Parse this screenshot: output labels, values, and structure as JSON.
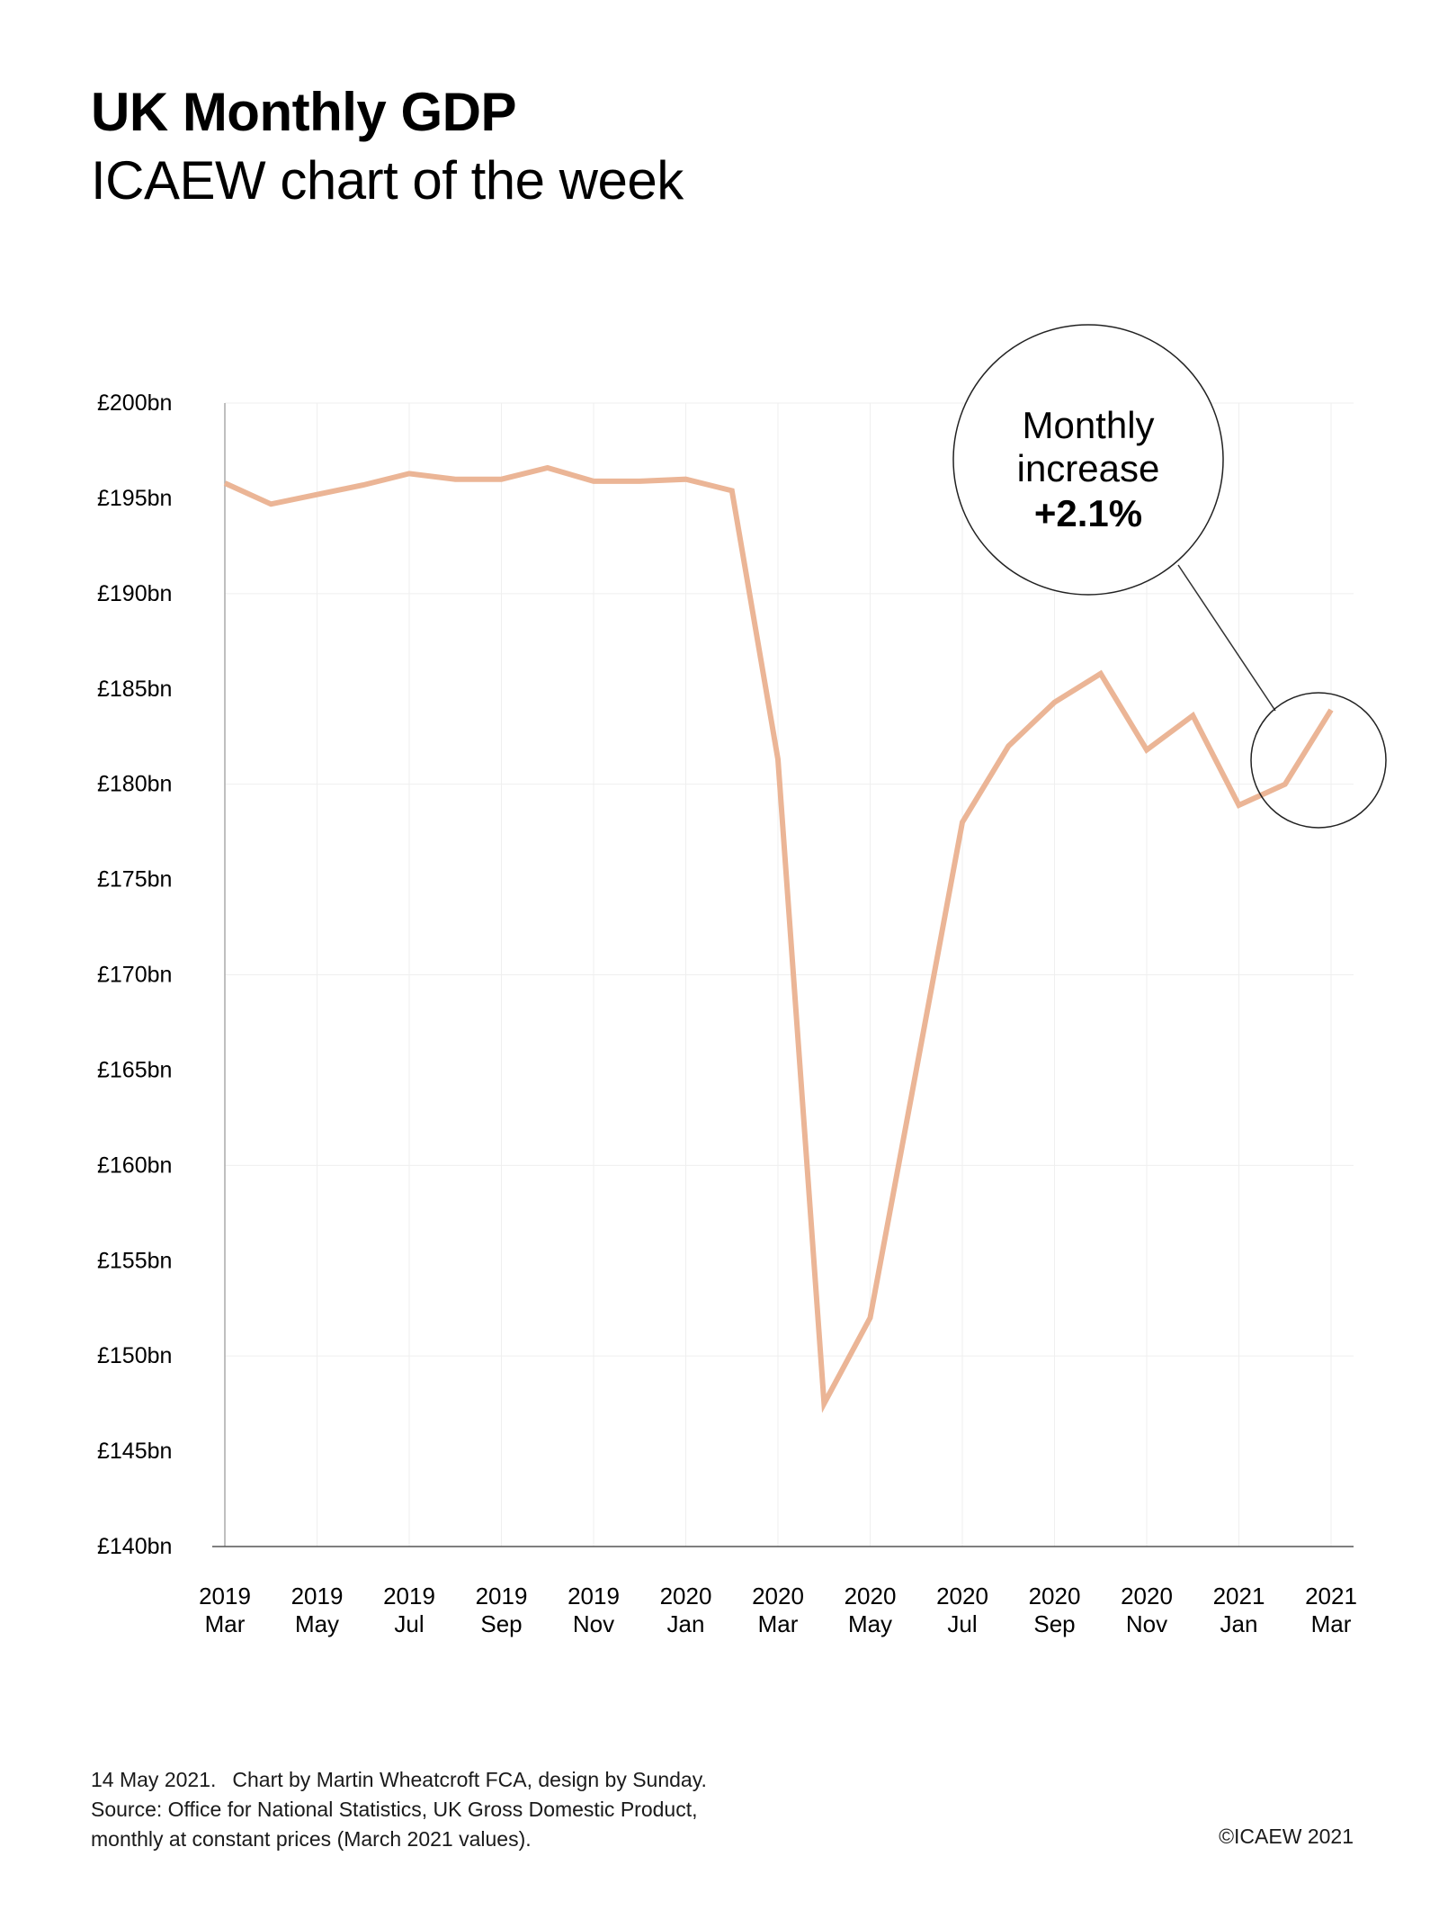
{
  "header": {
    "title": "UK Monthly GDP",
    "subtitle": "ICAEW chart of the week"
  },
  "callout": {
    "line1": "Monthly",
    "line2": "increase",
    "value": "+2.1%"
  },
  "footer": {
    "date": "14 May 2021.",
    "credit": "Chart by Martin Wheatcroft FCA, design by Sunday.",
    "source_line1": "Source: Office for National Statistics, UK Gross Domestic Product,",
    "source_line2": "monthly at constant prices (March 2021 values).",
    "copyright": "©ICAEW 2021"
  },
  "colors": {
    "line": "#ebb596",
    "axis": "#aaaaaa",
    "grid": "#efefef",
    "text": "#000000"
  },
  "chart_data": {
    "type": "line",
    "unit": "£bn",
    "ylim": [
      140,
      200
    ],
    "y_ticks": [
      140,
      145,
      150,
      155,
      160,
      165,
      170,
      175,
      180,
      185,
      190,
      195,
      200
    ],
    "y_tick_labels": [
      "£140bn",
      "£145bn",
      "£150bn",
      "£155bn",
      "£160bn",
      "£165bn",
      "£170bn",
      "£175bn",
      "£180bn",
      "£185bn",
      "£190bn",
      "£195bn",
      "£200bn"
    ],
    "grid": true,
    "x": [
      "2019 Mar",
      "2019 Apr",
      "2019 May",
      "2019 Jun",
      "2019 Jul",
      "2019 Aug",
      "2019 Sep",
      "2019 Oct",
      "2019 Nov",
      "2019 Dec",
      "2020 Jan",
      "2020 Feb",
      "2020 Mar",
      "2020 Apr",
      "2020 May",
      "2020 Jun",
      "2020 Jul",
      "2020 Aug",
      "2020 Sep",
      "2020 Oct",
      "2020 Nov",
      "2020 Dec",
      "2021 Jan",
      "2021 Feb",
      "2021 Mar"
    ],
    "x_tick_labels": [
      {
        "year": "2019",
        "month": "Mar"
      },
      {
        "year": "2019",
        "month": "May"
      },
      {
        "year": "2019",
        "month": "Jul"
      },
      {
        "year": "2019",
        "month": "Sep"
      },
      {
        "year": "2019",
        "month": "Nov"
      },
      {
        "year": "2020",
        "month": "Jan"
      },
      {
        "year": "2020",
        "month": "Mar"
      },
      {
        "year": "2020",
        "month": "May"
      },
      {
        "year": "2020",
        "month": "Jul"
      },
      {
        "year": "2020",
        "month": "Sep"
      },
      {
        "year": "2020",
        "month": "Nov"
      },
      {
        "year": "2021",
        "month": "Jan"
      },
      {
        "year": "2021",
        "month": "Mar"
      }
    ],
    "series": [
      {
        "values": [
          195.8,
          194.7,
          195.2,
          195.7,
          196.3,
          196.0,
          196.0,
          196.6,
          195.9,
          195.9,
          196.0,
          195.4,
          181.3,
          147.5,
          152.0,
          165.0,
          178.0,
          182.0,
          184.3,
          185.8,
          181.8,
          183.6,
          178.9,
          180.0,
          183.9
        ]
      }
    ]
  }
}
